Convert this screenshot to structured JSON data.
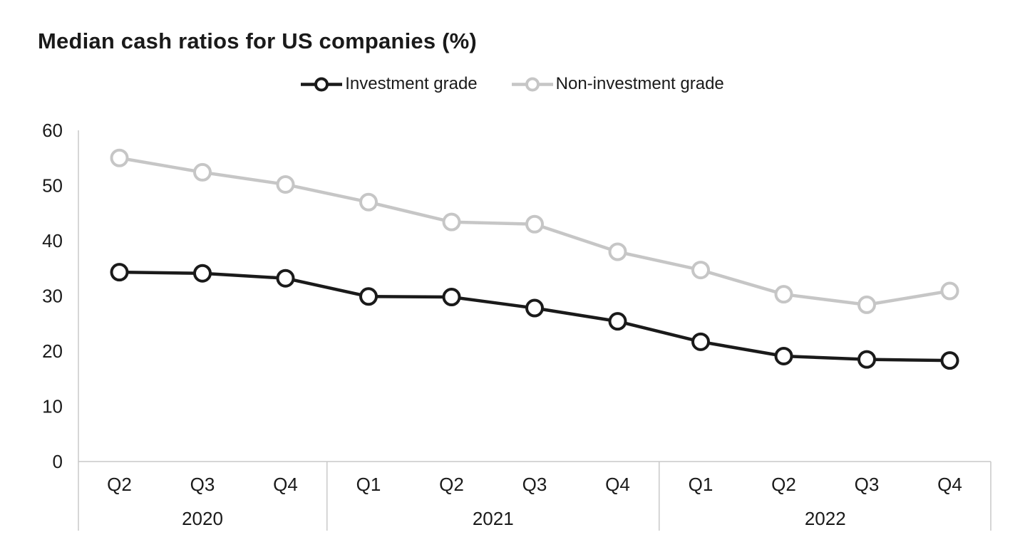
{
  "title": "Median cash ratios for US companies (%)",
  "legend": [
    {
      "name": "investment-grade",
      "label": "Investment grade",
      "color": "#1a1a1a"
    },
    {
      "name": "non-investment-grade",
      "label": "Non-investment grade",
      "color": "#c6c6c6"
    }
  ],
  "colors": {
    "axis": "#c9c9c9",
    "text": "#1a1a1a",
    "background": "#ffffff",
    "marker_fill": "#ffffff"
  },
  "chart_data": {
    "type": "line",
    "title": "Median cash ratios for US companies (%)",
    "xlabel": "",
    "ylabel": "",
    "ylim": [
      0,
      60
    ],
    "y_ticks": [
      60,
      50,
      40,
      30,
      20,
      10,
      0
    ],
    "grid": false,
    "legend_position": "top-center",
    "marker": "open-circle",
    "year_groups": [
      {
        "label": "2020",
        "quarters": [
          "Q2",
          "Q3",
          "Q4"
        ]
      },
      {
        "label": "2021",
        "quarters": [
          "Q1",
          "Q2",
          "Q3",
          "Q4"
        ]
      },
      {
        "label": "2022",
        "quarters": [
          "Q1",
          "Q2",
          "Q3",
          "Q4"
        ]
      }
    ],
    "series": [
      {
        "name": "Investment grade",
        "color": "#1a1a1a",
        "values": [
          34.3,
          34.1,
          33.2,
          29.9,
          29.8,
          27.8,
          25.4,
          21.7,
          19.1,
          18.5,
          18.3
        ]
      },
      {
        "name": "Non-investment grade",
        "color": "#c6c6c6",
        "values": [
          55.0,
          52.4,
          50.2,
          47.0,
          43.4,
          43.0,
          38.0,
          34.7,
          30.3,
          28.4,
          30.9
        ]
      }
    ]
  }
}
